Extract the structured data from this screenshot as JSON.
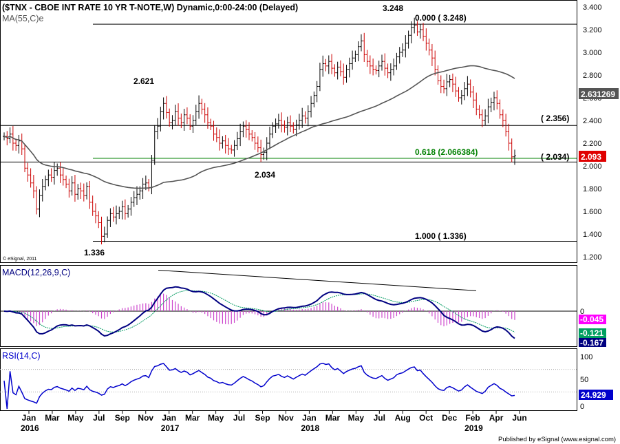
{
  "header": {
    "title": "($TNX - CBOE INT RATE 10 YR T-NOTE,W) Dynamic,0:00-24:00 (Delayed)",
    "ma_label": "MA(55,C)e",
    "copyright": "© eSignal, 2011",
    "footer": "Published by eSignal (www.esignal.com)"
  },
  "colors": {
    "up_bar": "#000000",
    "down_bar": "#cc0000",
    "ma_line": "#555555",
    "fib_line": "#008000",
    "macd_line": "#000080",
    "signal_line": "#009a60",
    "histogram": "#cc44cc",
    "rsi_line": "#0000cc",
    "last_price_bg": "#e00000",
    "ma_badge_bg": "#555555",
    "hist_badge_bg": "#ff00ff",
    "signal_badge_bg": "#00a060",
    "macd_badge_bg": "#000080",
    "rsi_badge_bg": "#0000cc"
  },
  "chart_data": [
    {
      "type": "ohlc",
      "name": "price",
      "yaxis_ticks": [
        "3.400",
        "3.200",
        "3.000",
        "2.800",
        "2.600",
        "2.400",
        "2.200",
        "2.000",
        "1.800",
        "1.600",
        "1.400",
        "1.200"
      ],
      "ylim": [
        1.12,
        3.44
      ],
      "xaxis_months": [
        {
          "label": "Jan",
          "year": "2016"
        },
        {
          "label": "Mar"
        },
        {
          "label": "May"
        },
        {
          "label": "Jul"
        },
        {
          "label": "Sep"
        },
        {
          "label": "Nov"
        },
        {
          "label": "Jan",
          "year": "2017"
        },
        {
          "label": "Mar"
        },
        {
          "label": "May"
        },
        {
          "label": "Jul"
        },
        {
          "label": "Sep"
        },
        {
          "label": "Nov"
        },
        {
          "label": "Jan",
          "year": "2018"
        },
        {
          "label": "Mar"
        },
        {
          "label": "May"
        },
        {
          "label": "Jul"
        },
        {
          "label": "Aug"
        },
        {
          "label": "Oct"
        },
        {
          "label": "Dec"
        },
        {
          "label": "Feb",
          "year": "2019"
        },
        {
          "label": "Apr"
        },
        {
          "label": "Jun"
        }
      ],
      "weekly_close": [
        2.26,
        2.24,
        2.28,
        2.2,
        2.18,
        2.22,
        2.15,
        1.98,
        1.92,
        1.85,
        1.78,
        1.62,
        1.74,
        1.82,
        1.88,
        1.92,
        1.9,
        1.96,
        1.98,
        1.92,
        1.88,
        1.84,
        1.78,
        1.85,
        1.75,
        1.8,
        1.78,
        1.74,
        1.82,
        1.68,
        1.6,
        1.56,
        1.5,
        1.38,
        1.4,
        1.52,
        1.58,
        1.55,
        1.58,
        1.6,
        1.64,
        1.58,
        1.62,
        1.68,
        1.72,
        1.75,
        1.78,
        1.84,
        1.85,
        1.81,
        2.05,
        2.3,
        2.35,
        2.48,
        2.55,
        2.47,
        2.38,
        2.4,
        2.48,
        2.42,
        2.38,
        2.45,
        2.42,
        2.35,
        2.4,
        2.48,
        2.55,
        2.5,
        2.45,
        2.38,
        2.35,
        2.28,
        2.25,
        2.2,
        2.22,
        2.18,
        2.15,
        2.14,
        2.18,
        2.24,
        2.3,
        2.35,
        2.32,
        2.28,
        2.25,
        2.2,
        2.16,
        2.1,
        2.12,
        2.2,
        2.28,
        2.35,
        2.37,
        2.4,
        2.36,
        2.34,
        2.38,
        2.35,
        2.32,
        2.36,
        2.4,
        2.44,
        2.42,
        2.48,
        2.55,
        2.62,
        2.7,
        2.85,
        2.9,
        2.88,
        2.92,
        2.86,
        2.82,
        2.87,
        2.83,
        2.78,
        2.85,
        2.9,
        2.95,
        2.98,
        3.05,
        3.1,
        2.98,
        2.92,
        2.88,
        2.85,
        2.84,
        2.88,
        2.92,
        2.86,
        2.82,
        2.85,
        2.88,
        2.96,
        3.0,
        3.02,
        3.08,
        3.15,
        3.22,
        3.24,
        3.18,
        3.2,
        3.14,
        3.08,
        3.02,
        2.95,
        2.85,
        2.75,
        2.7,
        2.68,
        2.74,
        2.76,
        2.72,
        2.66,
        2.6,
        2.62,
        2.68,
        2.72,
        2.65,
        2.58,
        2.5,
        2.45,
        2.4,
        2.44,
        2.52,
        2.56,
        2.6,
        2.55,
        2.45,
        2.4,
        2.3,
        2.2,
        2.08,
        2.09
      ],
      "ma_label": "MA(55,C)e",
      "last_price": "2.093",
      "ma_value": "2.631269",
      "annotations": {
        "high": "3.248",
        "swing_high": "2.621",
        "swing_low": "2.034",
        "low": "1.336",
        "fib_0": "0.000 ( 3.248)",
        "fib_618": "0.618 (2.066384)",
        "fib_1": "1.000 ( 1.336)",
        "level_2356": "( 2.356)",
        "level_2034": "( 2.034)"
      },
      "levels": [
        3.248,
        2.356,
        2.066384,
        2.034,
        1.336
      ]
    },
    {
      "type": "line",
      "name": "macd",
      "label": "MACD(12,26,9,C)",
      "yaxis_ticks": [
        "0"
      ],
      "histogram_value": "-0.045",
      "signal_value": "-0.121",
      "macd_value": "-0.167"
    },
    {
      "type": "line",
      "name": "rsi",
      "label": "RSI(14,C)",
      "yaxis_ticks": [
        "100",
        "50",
        "0"
      ],
      "rsi_value": "24.929"
    }
  ]
}
